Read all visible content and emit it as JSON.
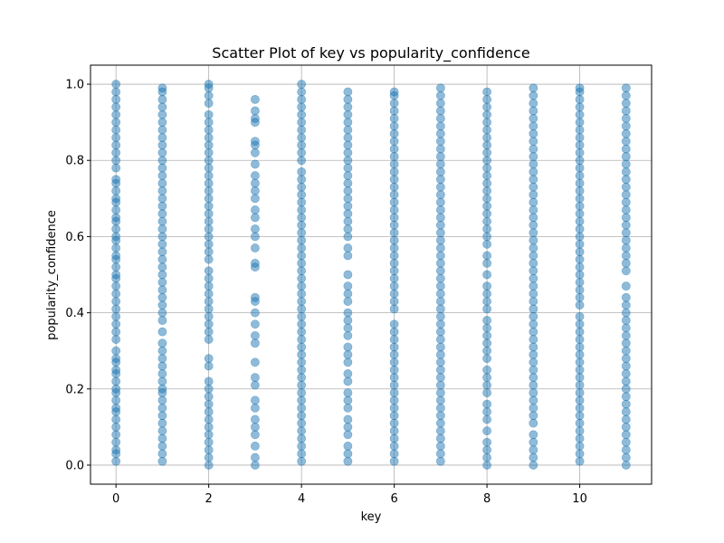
{
  "chart_data": {
    "type": "scatter",
    "title": "Scatter Plot of key vs popularity_confidence",
    "xlabel": "key",
    "ylabel": "popularity_confidence",
    "xlim": [
      -0.55,
      11.55
    ],
    "ylim": [
      -0.05,
      1.05
    ],
    "xticks": [
      "0",
      "2",
      "4",
      "6",
      "8",
      "10"
    ],
    "xtick_values": [
      0,
      2,
      4,
      6,
      8,
      10
    ],
    "yticks": [
      "0.0",
      "0.2",
      "0.4",
      "0.6",
      "0.8",
      "1.0"
    ],
    "ytick_values": [
      0.0,
      0.2,
      0.4,
      0.6,
      0.8,
      1.0
    ],
    "grid": true,
    "marker_color": "#1f77b4",
    "marker_opacity": 0.5,
    "series": [
      {
        "x": 0,
        "y": [
          0.01,
          0.03,
          0.04,
          0.06,
          0.08,
          0.1,
          0.12,
          0.14,
          0.15,
          0.17,
          0.19,
          0.2,
          0.22,
          0.24,
          0.25,
          0.27,
          0.28,
          0.3,
          0.33,
          0.35,
          0.37,
          0.39,
          0.41,
          0.43,
          0.45,
          0.47,
          0.49,
          0.5,
          0.52,
          0.54,
          0.55,
          0.57,
          0.59,
          0.6,
          0.62,
          0.64,
          0.65,
          0.67,
          0.69,
          0.7,
          0.72,
          0.74,
          0.75,
          0.78,
          0.8,
          0.82,
          0.84,
          0.86,
          0.88,
          0.9,
          0.92,
          0.94,
          0.96,
          0.98,
          1.0
        ]
      },
      {
        "x": 1,
        "y": [
          0.01,
          0.03,
          0.05,
          0.07,
          0.09,
          0.11,
          0.13,
          0.15,
          0.17,
          0.19,
          0.2,
          0.22,
          0.24,
          0.26,
          0.28,
          0.3,
          0.32,
          0.35,
          0.38,
          0.4,
          0.42,
          0.44,
          0.46,
          0.48,
          0.5,
          0.52,
          0.54,
          0.56,
          0.58,
          0.6,
          0.62,
          0.64,
          0.66,
          0.68,
          0.7,
          0.72,
          0.74,
          0.76,
          0.78,
          0.8,
          0.82,
          0.84,
          0.86,
          0.88,
          0.9,
          0.92,
          0.94,
          0.96,
          0.98,
          0.99
        ]
      },
      {
        "x": 2,
        "y": [
          0.0,
          0.02,
          0.04,
          0.06,
          0.08,
          0.1,
          0.12,
          0.14,
          0.16,
          0.18,
          0.2,
          0.22,
          0.26,
          0.28,
          0.33,
          0.35,
          0.37,
          0.39,
          0.41,
          0.43,
          0.45,
          0.47,
          0.49,
          0.51,
          0.54,
          0.56,
          0.58,
          0.6,
          0.62,
          0.64,
          0.66,
          0.68,
          0.7,
          0.72,
          0.74,
          0.76,
          0.78,
          0.8,
          0.82,
          0.84,
          0.86,
          0.88,
          0.9,
          0.92,
          0.95,
          0.97,
          0.99,
          1.0
        ]
      },
      {
        "x": 3,
        "y": [
          0.0,
          0.02,
          0.05,
          0.08,
          0.1,
          0.12,
          0.15,
          0.17,
          0.21,
          0.23,
          0.27,
          0.32,
          0.34,
          0.37,
          0.4,
          0.43,
          0.44,
          0.52,
          0.53,
          0.57,
          0.6,
          0.62,
          0.65,
          0.67,
          0.7,
          0.72,
          0.74,
          0.76,
          0.79,
          0.82,
          0.84,
          0.85,
          0.9,
          0.91,
          0.93,
          0.96
        ]
      },
      {
        "x": 4,
        "y": [
          0.01,
          0.03,
          0.05,
          0.07,
          0.09,
          0.11,
          0.13,
          0.15,
          0.17,
          0.19,
          0.21,
          0.23,
          0.25,
          0.27,
          0.29,
          0.31,
          0.33,
          0.35,
          0.37,
          0.39,
          0.41,
          0.43,
          0.45,
          0.47,
          0.49,
          0.51,
          0.53,
          0.55,
          0.57,
          0.59,
          0.61,
          0.63,
          0.65,
          0.67,
          0.69,
          0.71,
          0.73,
          0.75,
          0.77,
          0.8,
          0.82,
          0.84,
          0.86,
          0.88,
          0.9,
          0.92,
          0.94,
          0.96,
          0.98,
          1.0
        ]
      },
      {
        "x": 5,
        "y": [
          0.01,
          0.03,
          0.05,
          0.08,
          0.1,
          0.12,
          0.15,
          0.17,
          0.19,
          0.22,
          0.24,
          0.27,
          0.29,
          0.31,
          0.34,
          0.36,
          0.38,
          0.4,
          0.43,
          0.45,
          0.47,
          0.5,
          0.55,
          0.57,
          0.6,
          0.62,
          0.64,
          0.66,
          0.68,
          0.7,
          0.72,
          0.74,
          0.76,
          0.78,
          0.8,
          0.82,
          0.84,
          0.86,
          0.88,
          0.9,
          0.92,
          0.94,
          0.96,
          0.98
        ]
      },
      {
        "x": 6,
        "y": [
          0.01,
          0.03,
          0.05,
          0.07,
          0.09,
          0.11,
          0.13,
          0.15,
          0.17,
          0.19,
          0.21,
          0.23,
          0.25,
          0.27,
          0.29,
          0.31,
          0.33,
          0.35,
          0.37,
          0.41,
          0.43,
          0.45,
          0.47,
          0.49,
          0.51,
          0.53,
          0.55,
          0.57,
          0.59,
          0.61,
          0.63,
          0.65,
          0.67,
          0.69,
          0.71,
          0.73,
          0.75,
          0.77,
          0.79,
          0.81,
          0.83,
          0.85,
          0.87,
          0.89,
          0.91,
          0.93,
          0.95,
          0.97,
          0.98
        ]
      },
      {
        "x": 7,
        "y": [
          0.01,
          0.03,
          0.05,
          0.07,
          0.09,
          0.11,
          0.13,
          0.15,
          0.17,
          0.19,
          0.21,
          0.23,
          0.25,
          0.27,
          0.29,
          0.31,
          0.33,
          0.35,
          0.37,
          0.39,
          0.41,
          0.43,
          0.45,
          0.47,
          0.49,
          0.51,
          0.53,
          0.55,
          0.57,
          0.59,
          0.61,
          0.63,
          0.65,
          0.67,
          0.69,
          0.71,
          0.73,
          0.75,
          0.77,
          0.79,
          0.81,
          0.83,
          0.85,
          0.87,
          0.89,
          0.91,
          0.93,
          0.95,
          0.97,
          0.99
        ]
      },
      {
        "x": 8,
        "y": [
          0.0,
          0.02,
          0.04,
          0.06,
          0.09,
          0.12,
          0.14,
          0.16,
          0.19,
          0.21,
          0.23,
          0.25,
          0.28,
          0.3,
          0.32,
          0.34,
          0.36,
          0.38,
          0.41,
          0.43,
          0.45,
          0.47,
          0.5,
          0.53,
          0.55,
          0.58,
          0.6,
          0.62,
          0.64,
          0.66,
          0.68,
          0.7,
          0.72,
          0.74,
          0.76,
          0.78,
          0.8,
          0.82,
          0.84,
          0.86,
          0.88,
          0.9,
          0.92,
          0.94,
          0.96,
          0.98
        ]
      },
      {
        "x": 9,
        "y": [
          0.0,
          0.02,
          0.04,
          0.06,
          0.08,
          0.11,
          0.13,
          0.15,
          0.17,
          0.19,
          0.21,
          0.23,
          0.25,
          0.27,
          0.29,
          0.31,
          0.33,
          0.35,
          0.37,
          0.39,
          0.41,
          0.43,
          0.45,
          0.47,
          0.49,
          0.51,
          0.53,
          0.55,
          0.57,
          0.59,
          0.61,
          0.63,
          0.65,
          0.67,
          0.69,
          0.71,
          0.73,
          0.75,
          0.77,
          0.79,
          0.81,
          0.83,
          0.85,
          0.87,
          0.89,
          0.91,
          0.93,
          0.95,
          0.97,
          0.99
        ]
      },
      {
        "x": 10,
        "y": [
          0.01,
          0.03,
          0.05,
          0.07,
          0.09,
          0.11,
          0.13,
          0.15,
          0.17,
          0.19,
          0.21,
          0.23,
          0.25,
          0.27,
          0.29,
          0.31,
          0.33,
          0.35,
          0.37,
          0.39,
          0.42,
          0.44,
          0.46,
          0.48,
          0.5,
          0.52,
          0.54,
          0.56,
          0.58,
          0.6,
          0.62,
          0.64,
          0.66,
          0.68,
          0.7,
          0.72,
          0.74,
          0.76,
          0.78,
          0.8,
          0.82,
          0.84,
          0.86,
          0.88,
          0.9,
          0.92,
          0.94,
          0.96,
          0.98,
          0.99
        ]
      },
      {
        "x": 11,
        "y": [
          0.0,
          0.02,
          0.04,
          0.06,
          0.08,
          0.1,
          0.12,
          0.14,
          0.16,
          0.18,
          0.2,
          0.22,
          0.24,
          0.26,
          0.28,
          0.3,
          0.32,
          0.34,
          0.36,
          0.38,
          0.4,
          0.42,
          0.44,
          0.47,
          0.51,
          0.53,
          0.55,
          0.57,
          0.59,
          0.61,
          0.63,
          0.65,
          0.67,
          0.69,
          0.71,
          0.73,
          0.75,
          0.77,
          0.79,
          0.81,
          0.83,
          0.85,
          0.87,
          0.89,
          0.91,
          0.93,
          0.95,
          0.97,
          0.99
        ]
      }
    ]
  }
}
